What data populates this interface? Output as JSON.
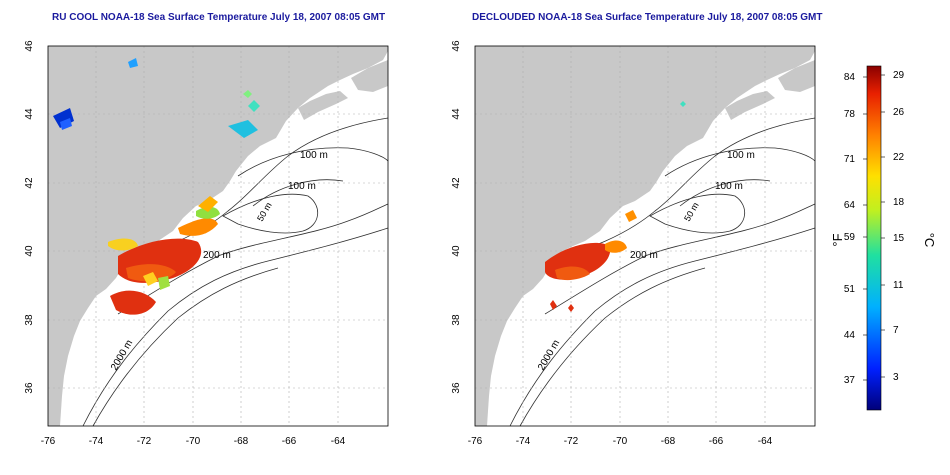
{
  "left_panel": {
    "title": "RU COOL NOAA-18 Sea Surface Temperature July 18, 2007 08:05 GMT"
  },
  "right_panel": {
    "title": "DECLOUDED NOAA-18 Sea Surface Temperature July 18, 2007 08:05 GMT"
  },
  "axes": {
    "lon_ticks": [
      "-76",
      "-74",
      "-72",
      "-70",
      "-68",
      "-66",
      "-64"
    ],
    "lat_ticks": [
      "46",
      "44",
      "42",
      "40",
      "38",
      "36"
    ]
  },
  "contour_labels": {
    "m100_a": "100 m",
    "m100_b": "100 m",
    "m50": "50 m",
    "m200": "200 m",
    "m2000": "2000 m"
  },
  "colorbar": {
    "fahrenheit_unit": "°F",
    "celsius_unit": "°C",
    "fahrenheit_ticks": [
      "84",
      "78",
      "71",
      "64",
      "59",
      "51",
      "44",
      "37"
    ],
    "celsius_ticks": [
      "29",
      "26",
      "22",
      "18",
      "15",
      "11",
      "7",
      "3"
    ]
  },
  "colors": {
    "land": "#c8c8c8",
    "title": "#1a1a9e",
    "warm": "#e03010",
    "cool": "#0030d0"
  }
}
